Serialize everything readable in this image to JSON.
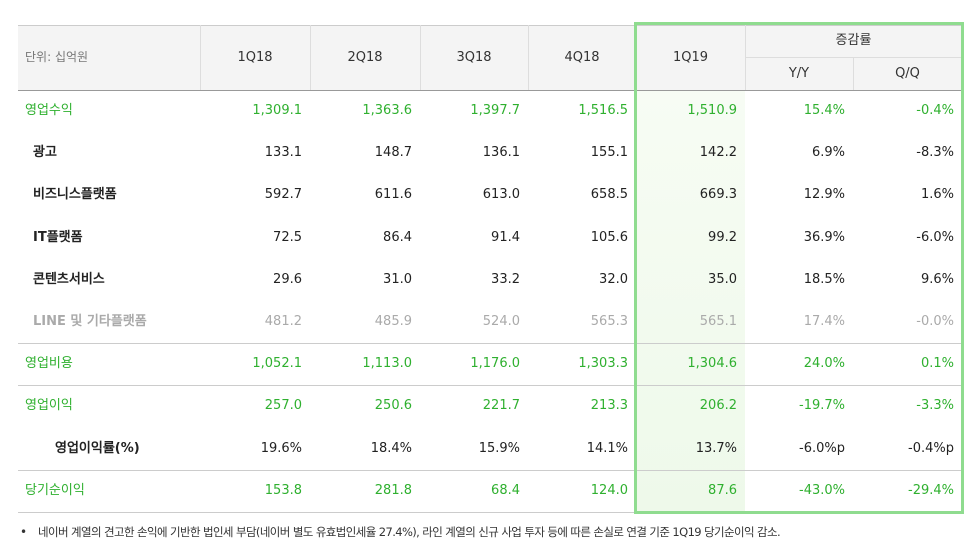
{
  "table": {
    "header": {
      "unit": "단위: 십억원",
      "columns": [
        "1Q18",
        "2Q18",
        "3Q18",
        "4Q18",
        "1Q19"
      ],
      "change": "증감률",
      "sub": [
        "Y/Y",
        "Q/Q"
      ]
    },
    "rows": [
      [
        "영업수익",
        "1,309.1",
        "1,363.6",
        "1,397.7",
        "1,516.5",
        "1,510.9",
        "15.4%",
        "-0.4%"
      ],
      [
        "광고",
        "133.1",
        "148.7",
        "136.1",
        "155.1",
        "142.2",
        "6.9%",
        "-8.3%"
      ],
      [
        "비즈니스플랫폼",
        "592.7",
        "611.6",
        "613.0",
        "658.5",
        "669.3",
        "12.9%",
        "1.6%"
      ],
      [
        "IT플랫폼",
        "72.5",
        "86.4",
        "91.4",
        "105.6",
        "99.2",
        "36.9%",
        "-6.0%"
      ],
      [
        "콘텐츠서비스",
        "29.6",
        "31.0",
        "33.2",
        "32.0",
        "35.0",
        "18.5%",
        "9.6%"
      ],
      [
        "LINE 및 기타플랫폼",
        "481.2",
        "485.9",
        "524.0",
        "565.3",
        "565.1",
        "17.4%",
        "-0.0%"
      ],
      [
        "영업비용",
        "1,052.1",
        "1,113.0",
        "1,176.0",
        "1,303.3",
        "1,304.6",
        "24.0%",
        "0.1%"
      ],
      [
        "영업이익",
        "257.0",
        "250.6",
        "221.7",
        "213.3",
        "206.2",
        "-19.7%",
        "-3.3%"
      ],
      [
        "영업이익률(%)",
        "19.6%",
        "18.4%",
        "15.9%",
        "14.1%",
        "13.7%",
        "-6.0%p",
        "-0.4%p"
      ],
      [
        "당기순이익",
        "153.8",
        "281.8",
        "68.4",
        "124.0",
        "87.6",
        "-43.0%",
        "-29.4%"
      ]
    ],
    "footnote": "네이버 계열의 견고한 손익에 기반한 법인세 부담(네이버 별도 유효법인세율 27.4%), 라인 계열의 신규 사업 투자 등에 따른 손실로 연결 기준 1Q19 당기순이익 감소."
  }
}
